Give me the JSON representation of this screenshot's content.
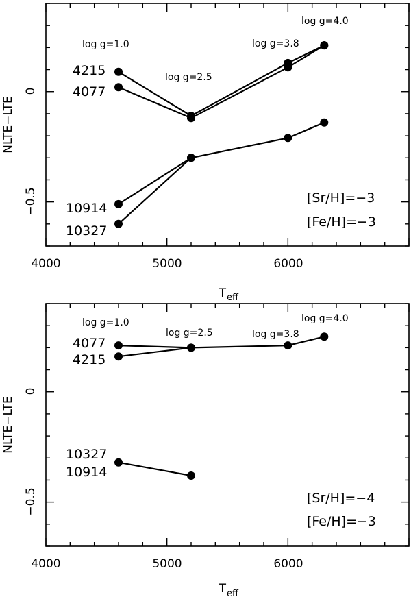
{
  "chart_data": [
    {
      "type": "line",
      "xlabel": "T",
      "xlabel_sub": "eff",
      "ylabel": "NLTE−LTE",
      "xlim": [
        4000,
        7000
      ],
      "ylim": [
        -0.7,
        0.4
      ],
      "xticks": [
        "4000",
        "5000",
        "6000"
      ],
      "yticks": [
        "0",
        "−0.5"
      ],
      "series": [
        {
          "name": "4215",
          "x": [
            4600,
            5200,
            6000,
            6300
          ],
          "y": [
            0.09,
            -0.11,
            0.13,
            0.21
          ]
        },
        {
          "name": "4077",
          "x": [
            4600,
            5200,
            6000,
            6300
          ],
          "y": [
            0.02,
            -0.12,
            0.11,
            0.21
          ]
        },
        {
          "name": "10914",
          "x": [
            4600,
            5200,
            6000,
            6300
          ],
          "y": [
            -0.51,
            -0.3,
            -0.21,
            -0.14
          ]
        },
        {
          "name": "10327",
          "x": [
            4600,
            5200
          ],
          "y": [
            -0.6,
            -0.3
          ]
        }
      ],
      "annotations": [
        "log g=1.0",
        "log g=2.5",
        "log g=3.8",
        "log g=4.0",
        "[Sr/H]=−3",
        "[Fe/H]=−3"
      ]
    },
    {
      "type": "line",
      "xlabel": "T",
      "xlabel_sub": "eff",
      "ylabel": "NLTE−LTE",
      "xlim": [
        4000,
        7000
      ],
      "ylim": [
        -0.7,
        0.4
      ],
      "xticks": [
        "4000",
        "5000",
        "6000"
      ],
      "yticks": [
        "0",
        "−0.5"
      ],
      "series": [
        {
          "name": "4077",
          "x": [
            4600,
            5200,
            6000,
            6300
          ],
          "y": [
            0.21,
            0.2,
            0.21,
            0.25
          ]
        },
        {
          "name": "4215",
          "x": [
            4600,
            5200
          ],
          "y": [
            0.16,
            0.2
          ]
        },
        {
          "name": "10327",
          "x": [
            4600,
            5200
          ],
          "y": [
            -0.32,
            -0.38
          ]
        }
      ],
      "annotations": [
        "log g=1.0",
        "log g=2.5",
        "log g=3.8",
        "log g=4.0",
        "[Sr/H]=−4",
        "[Fe/H]=−3"
      ],
      "extra_label": "10914"
    }
  ]
}
